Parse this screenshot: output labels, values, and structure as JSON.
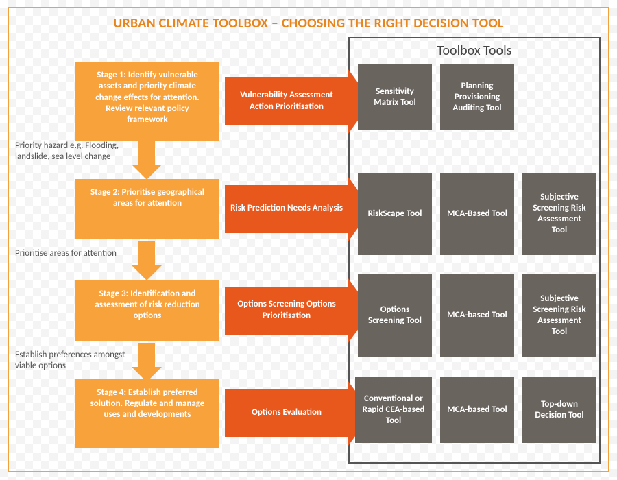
{
  "colors": {
    "title": "#e8851c",
    "stage_fill": "#f8a23c",
    "arrow_fill": "#e8571c",
    "tool_fill": "#6a645f",
    "panel_border": "#555555",
    "frame_border": "#f2a23a",
    "text_dark": "#555555"
  },
  "title": "URBAN CLIMATE TOOLBOX – CHOOSING THE RIGHT DECISION TOOL",
  "toolbox_heading": "Toolbox Tools",
  "stages": [
    {
      "label": "Stage 1: Identify vulnerable assets and priority climate change effects for attention.  Review relevant policy framework"
    },
    {
      "label": "Stage 2: Prioritise geographical areas for attention"
    },
    {
      "label": "Stage 3: Identification and assessment of risk reduction options"
    },
    {
      "label": "Stage 4: Establish preferred solution.  Regulate and manage uses and developments"
    }
  ],
  "arrows": [
    {
      "label": "Vulnerability Assessment Action Prioritisation"
    },
    {
      "label": "Risk Prediction Needs Analysis"
    },
    {
      "label": "Options Screening Options Prioritisation"
    },
    {
      "label": "Options Evaluation"
    }
  ],
  "connectors": [
    {
      "note": "Priority hazard e.g. Flooding, landslide, sea level change"
    },
    {
      "note": "Prioritise areas for attention"
    },
    {
      "note": "Establish preferences amongst viable options"
    }
  ],
  "tool_rows": [
    [
      "Sensitivity Matrix Tool",
      "Planning Provisioning Auditing Tool"
    ],
    [
      "RiskScape Tool",
      "MCA-Based Tool",
      "Subjective Screening Risk Assessment Tool"
    ],
    [
      "Options Screening Tool",
      "MCA-based Tool",
      "Subjective Screening Risk Assessment Tool"
    ],
    [
      "Conventional or Rapid CEA-based Tool",
      "MCA-based Tool",
      "Top-down Decision Tool"
    ]
  ]
}
